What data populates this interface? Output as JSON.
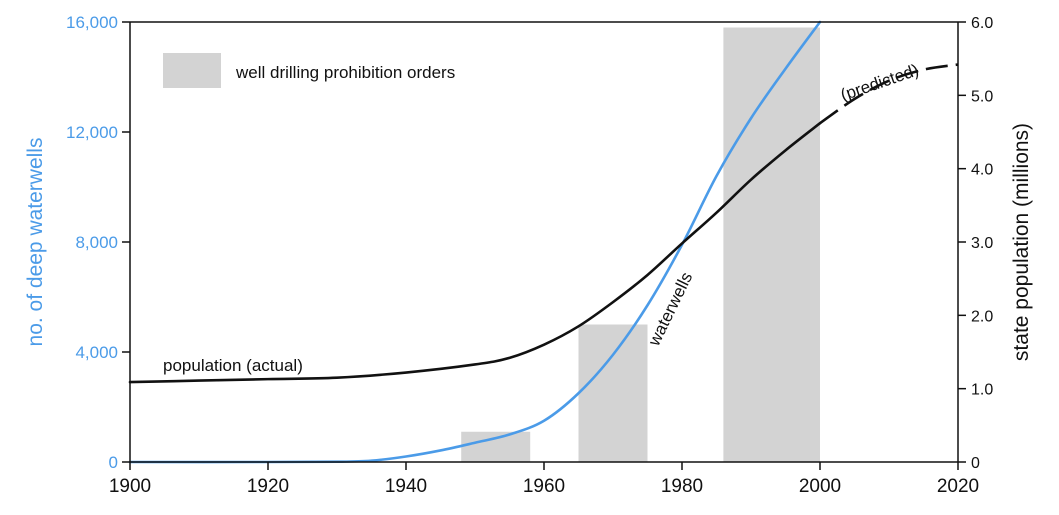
{
  "chart_data": {
    "type": "bar+line",
    "x_range": [
      1900,
      2020
    ],
    "x_ticks": [
      1900,
      1920,
      1940,
      1960,
      1980,
      2000,
      2020
    ],
    "x_tick_labels": [
      "1900",
      "1920",
      "1940",
      "1960",
      "1980",
      "2000",
      "2020"
    ],
    "left_axis": {
      "label": "no. of deep waterwells",
      "range": [
        0,
        16000
      ],
      "ticks": [
        0,
        4000,
        8000,
        12000,
        16000
      ],
      "tick_labels": [
        "0",
        "4,000",
        "8,000",
        "12,000",
        "16,000"
      ],
      "color": "#4b9be8"
    },
    "right_axis": {
      "label": "state population (millions)",
      "range": [
        0,
        6
      ],
      "ticks": [
        0,
        1,
        2,
        3,
        4,
        5,
        6
      ],
      "tick_labels": [
        "0",
        "1.0",
        "2.0",
        "3.0",
        "4.0",
        "5.0",
        "6.0"
      ],
      "color": "#111111"
    },
    "bars": {
      "name": "well drilling prohibition orders",
      "axis": "left",
      "color": "#d3d3d3",
      "items": [
        {
          "start": 1948,
          "end": 1958,
          "value": 1100
        },
        {
          "start": 1965,
          "end": 1975,
          "value": 5000
        },
        {
          "start": 1986,
          "end": 2000,
          "value": 15800
        }
      ]
    },
    "series": [
      {
        "name": "waterwells",
        "axis": "left",
        "color": "#4b9be8",
        "style": "solid",
        "x": [
          1900,
          1920,
          1930,
          1935,
          1940,
          1945,
          1950,
          1955,
          1960,
          1965,
          1970,
          1975,
          1980,
          1985,
          1990,
          1995,
          2000
        ],
        "y": [
          0,
          0,
          10,
          50,
          200,
          420,
          700,
          1000,
          1500,
          2500,
          3900,
          5700,
          7900,
          10400,
          12500,
          14300,
          16000
        ]
      },
      {
        "name": "population (actual)",
        "axis": "right",
        "color": "#111111",
        "style": "solid",
        "x": [
          1900,
          1910,
          1920,
          1930,
          1940,
          1950,
          1955,
          1960,
          1965,
          1970,
          1975,
          1980,
          1985,
          1990,
          1995,
          2000
        ],
        "y": [
          1.09,
          1.11,
          1.13,
          1.15,
          1.22,
          1.33,
          1.42,
          1.6,
          1.85,
          2.18,
          2.55,
          2.98,
          3.4,
          3.85,
          4.25,
          4.62
        ]
      },
      {
        "name": "(predicted)",
        "axis": "right",
        "color": "#111111",
        "style": "dashed",
        "x": [
          2000,
          2005,
          2010,
          2015,
          2020
        ],
        "y": [
          4.62,
          4.95,
          5.2,
          5.35,
          5.42
        ]
      }
    ],
    "annotations": {
      "legend_label": "well drilling prohibition orders",
      "population_label": "population (actual)",
      "waterwells_label": "waterwells",
      "predicted_label": "(predicted)"
    }
  }
}
